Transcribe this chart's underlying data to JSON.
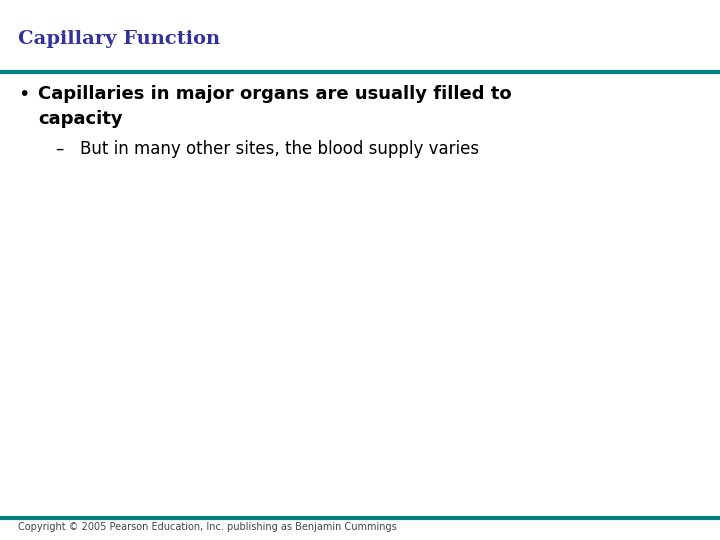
{
  "title": "Capillary Function",
  "title_color": "#333399",
  "title_fontsize": 14,
  "line_color": "#008080",
  "line_thickness": 3.0,
  "bullet_text_line1": "Capillaries in major organs are usually filled to",
  "bullet_text_line2": "capacity",
  "sub_bullet_text": "But in many other sites, the blood supply varies",
  "bullet_color": "#000000",
  "bullet_fontsize": 13,
  "sub_bullet_fontsize": 12,
  "background_color": "#ffffff",
  "copyright_text": "Copyright © 2005 Pearson Education, Inc. publishing as Benjamin Cummings",
  "copyright_fontsize": 7,
  "copyright_color": "#444444"
}
